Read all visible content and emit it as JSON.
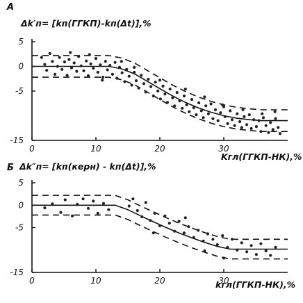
{
  "chart_data": [
    {
      "id": "A",
      "panel_letter": "A",
      "type": "scatter",
      "ylabel": "Δk′п= [kп(ГГКП)-kп(Δt)],%",
      "xlabel": "Kгл(ГГКП-НК),%",
      "xlim": [
        0,
        40
      ],
      "ylim": [
        -15,
        5
      ],
      "xticks": [
        "0",
        "10",
        "20",
        "30"
      ],
      "yticks": [
        "5",
        "0",
        "-5",
        "-15"
      ],
      "trend": {
        "x": [
          0,
          12,
          14,
          16,
          18,
          20,
          22,
          24,
          26,
          28,
          30,
          32,
          34,
          36,
          38,
          40
        ],
        "center": [
          0,
          0,
          -0.5,
          -1.5,
          -3,
          -4.5,
          -6,
          -7.3,
          -8.4,
          -9.3,
          -10,
          -10.5,
          -10.8,
          -11,
          -11,
          -11
        ],
        "upper_offset": 2.2,
        "lower_offset": -2.2
      },
      "points": [
        [
          1.5,
          1.8
        ],
        [
          2,
          0.4
        ],
        [
          2.3,
          -0.8
        ],
        [
          2.8,
          2.6
        ],
        [
          3.2,
          1
        ],
        [
          3.6,
          -1.6
        ],
        [
          4,
          0
        ],
        [
          4.3,
          1.8
        ],
        [
          4.7,
          -0.6
        ],
        [
          5.1,
          0.9
        ],
        [
          5.5,
          -1.8
        ],
        [
          5.8,
          1.4
        ],
        [
          6.2,
          -0.3
        ],
        [
          6.6,
          0.7
        ],
        [
          7,
          -1
        ],
        [
          7.3,
          2
        ],
        [
          7.7,
          0.1
        ],
        [
          8.1,
          -0.9
        ],
        [
          8.5,
          1.1
        ],
        [
          8.8,
          -1.9
        ],
        [
          9.2,
          0.5
        ],
        [
          9.6,
          -0.4
        ],
        [
          10,
          1.6
        ],
        [
          10.3,
          -1.2
        ],
        [
          10.7,
          0.3
        ],
        [
          11.1,
          -2.2
        ],
        [
          11.5,
          1
        ],
        [
          11.8,
          -0.7
        ],
        [
          12.2,
          0.2
        ],
        [
          12.6,
          -1.6
        ],
        [
          13,
          0.8
        ],
        [
          13.3,
          -2.4
        ],
        [
          13.7,
          -0.2
        ],
        [
          14.1,
          -1.3
        ],
        [
          14.5,
          -3.1
        ],
        [
          14.8,
          -0.6
        ],
        [
          15.2,
          -2
        ],
        [
          15.6,
          -3.8
        ],
        [
          16,
          -1.2
        ],
        [
          16.3,
          -2.9
        ],
        [
          16.7,
          -4.4
        ],
        [
          17.1,
          -1.8
        ],
        [
          17.5,
          -3.5
        ],
        [
          17.8,
          -5.2
        ],
        [
          18.2,
          -2.6
        ],
        [
          18.6,
          -4.1
        ],
        [
          19,
          -6
        ],
        [
          19.3,
          -3.2
        ],
        [
          19.7,
          -5
        ],
        [
          20.1,
          -6.6
        ],
        [
          20.5,
          -4
        ],
        [
          20.8,
          -5.6
        ],
        [
          21.2,
          -7.3
        ],
        [
          21.6,
          -4.6
        ],
        [
          22,
          -6.4
        ],
        [
          22.3,
          -8
        ],
        [
          22.7,
          -5.3
        ],
        [
          23.1,
          -7
        ],
        [
          23.5,
          -8.5
        ],
        [
          23.8,
          -6
        ],
        [
          24.2,
          -7.8
        ],
        [
          24.6,
          -9.2
        ],
        [
          25,
          -6.7
        ],
        [
          25.3,
          -8.4
        ],
        [
          25.7,
          -9.8
        ],
        [
          26.1,
          -7.4
        ],
        [
          26.5,
          -9
        ],
        [
          26.8,
          -10.4
        ],
        [
          27.2,
          -8
        ],
        [
          27.6,
          -9.6
        ],
        [
          28,
          -7.6
        ],
        [
          28.3,
          -10.6
        ],
        [
          28.7,
          -8.8
        ],
        [
          29.1,
          -11
        ],
        [
          29.5,
          -9.4
        ],
        [
          29.8,
          -7.8
        ],
        [
          30.2,
          -10.2
        ],
        [
          30.6,
          -11.6
        ],
        [
          31,
          -9
        ],
        [
          31.3,
          -10.8
        ],
        [
          31.7,
          -12
        ],
        [
          32.1,
          -9.6
        ],
        [
          32.5,
          -11.2
        ],
        [
          32.8,
          -12.4
        ],
        [
          33.2,
          -10.2
        ],
        [
          33.6,
          -11.8
        ],
        [
          34,
          -9.8
        ],
        [
          34.3,
          -12.6
        ],
        [
          34.7,
          -10.8
        ],
        [
          35.1,
          -12.2
        ],
        [
          35.5,
          -11
        ],
        [
          35.8,
          -13.2
        ],
        [
          36.2,
          -10.4
        ],
        [
          36.6,
          -12
        ],
        [
          37,
          -13.4
        ],
        [
          37.3,
          -11.4
        ],
        [
          37.7,
          -12.8
        ],
        [
          38.1,
          -10.6
        ],
        [
          38.5,
          -12.4
        ],
        [
          38.8,
          -13.6
        ],
        [
          6,
          2.8
        ],
        [
          9,
          2.4
        ],
        [
          11,
          -2.8
        ],
        [
          14,
          1
        ],
        [
          16,
          -0.2
        ],
        [
          20,
          -2.8
        ],
        [
          24,
          -4.6
        ],
        [
          27,
          -6.2
        ],
        [
          30,
          -8.2
        ],
        [
          33,
          -8.8
        ],
        [
          36,
          -9.6
        ],
        [
          38,
          -9.2
        ]
      ]
    },
    {
      "id": "B",
      "panel_letter": "Б",
      "type": "scatter",
      "ylabel": "Δk″п= [kп(керн) - kп(Δt)],%",
      "xlabel": "kгл(ГГКП-НК),%",
      "xlim": [
        0,
        40
      ],
      "ylim": [
        -15,
        5
      ],
      "xticks": [
        "0",
        "10",
        "20",
        "30"
      ],
      "yticks": [
        "5",
        "0",
        "-5",
        "-15"
      ],
      "trend": {
        "x": [
          0,
          13,
          15,
          17,
          19,
          21,
          23,
          25,
          27,
          29,
          31,
          40
        ],
        "center": [
          0,
          0,
          -1,
          -2.4,
          -3.7,
          -5,
          -6.2,
          -7.3,
          -8.3,
          -9.2,
          -9.8,
          -9.8
        ],
        "upper_offset": 2.2,
        "lower_offset": -2.2
      },
      "points": [
        [
          2,
          -0.6
        ],
        [
          3.2,
          0.3
        ],
        [
          4.5,
          -1.6
        ],
        [
          5.2,
          1.2
        ],
        [
          6.3,
          -2.4
        ],
        [
          7.1,
          0.2
        ],
        [
          8,
          1.4
        ],
        [
          8.8,
          -0.7
        ],
        [
          9.6,
          0.9
        ],
        [
          10.3,
          -1.8
        ],
        [
          11.2,
          0.4
        ],
        [
          12,
          -1
        ],
        [
          15.2,
          -0.2
        ],
        [
          15.8,
          1.4
        ],
        [
          16.5,
          -1.2
        ],
        [
          17.2,
          -2.6
        ],
        [
          17.8,
          0.6
        ],
        [
          18.5,
          -3.4
        ],
        [
          19.2,
          -1.8
        ],
        [
          20,
          -4.6
        ],
        [
          20.8,
          -2.4
        ],
        [
          21.5,
          -4
        ],
        [
          22.3,
          -5.8
        ],
        [
          23,
          -3.6
        ],
        [
          23.8,
          -6.2
        ],
        [
          24.5,
          -4.8
        ],
        [
          25.3,
          -7.2
        ],
        [
          26,
          -5.6
        ],
        [
          26.8,
          -8
        ],
        [
          27.5,
          -6.4
        ],
        [
          28.3,
          -7.6
        ],
        [
          29,
          -8.8
        ],
        [
          29.8,
          -6.8
        ],
        [
          30.6,
          -9.4
        ],
        [
          31.3,
          -7.6
        ],
        [
          32.1,
          -10
        ],
        [
          32.8,
          -8.4
        ],
        [
          33.6,
          -10.4
        ],
        [
          34.3,
          -9
        ],
        [
          35.1,
          -11
        ],
        [
          35.8,
          -8.6
        ],
        [
          36.6,
          -10.2
        ],
        [
          37.3,
          -11.2
        ],
        [
          38.1,
          -9.4
        ],
        [
          27,
          -10.2
        ],
        [
          30,
          -11.8
        ],
        [
          19,
          -6.2
        ],
        [
          24,
          -2.8
        ]
      ]
    }
  ]
}
